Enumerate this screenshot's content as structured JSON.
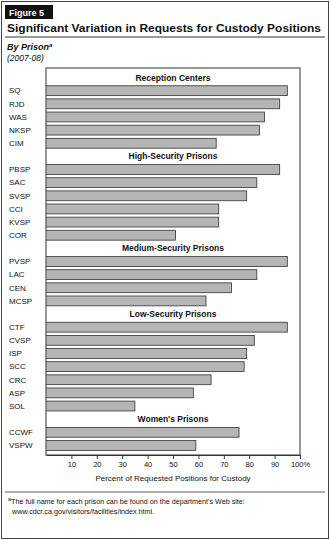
{
  "chart_data": {
    "type": "bar",
    "orientation": "horizontal",
    "figure_label": "Figure 5",
    "title": "Significant Variation in Requests for Custody Positions",
    "subtitle": "By Prison",
    "footnote_marker": "a",
    "period": "(2007-08)",
    "groups": [
      {
        "name": "Reception Centers",
        "categories": [
          "SQ",
          "RJD",
          "WAS",
          "NKSP",
          "CIM"
        ],
        "values": [
          95,
          92,
          86,
          84,
          67
        ]
      },
      {
        "name": "High-Security Prisons",
        "categories": [
          "PBSP",
          "SAC",
          "SVSP",
          "CCI",
          "KVSP",
          "COR"
        ],
        "values": [
          92,
          83,
          79,
          68,
          68,
          51
        ]
      },
      {
        "name": "Medium-Security Prisons",
        "categories": [
          "PVSP",
          "LAC",
          "CEN",
          "MCSP"
        ],
        "values": [
          95,
          83,
          73,
          63
        ]
      },
      {
        "name": "Low-Security Prisons",
        "categories": [
          "CTF",
          "CVSP",
          "ISP",
          "SCC",
          "CRC",
          "ASP",
          "SOL"
        ],
        "values": [
          95,
          82,
          79,
          78,
          65,
          58,
          35
        ]
      },
      {
        "name": "Women's Prisons",
        "categories": [
          "CCWF",
          "VSPW"
        ],
        "values": [
          76,
          59
        ]
      }
    ],
    "color": "#b5b5b5",
    "grid": false,
    "xlim": [
      0,
      100
    ],
    "xticks": [
      10,
      20,
      30,
      40,
      50,
      60,
      70,
      80,
      90,
      {
        "value": 100,
        "label": "100%"
      }
    ],
    "x_label": "Percent of Requested Positions for Custody",
    "footnote": [
      "The full name for each prison can be found on the department's Web site:",
      "www.cdcr.ca.gov/visitors/facilities/index.html."
    ]
  }
}
